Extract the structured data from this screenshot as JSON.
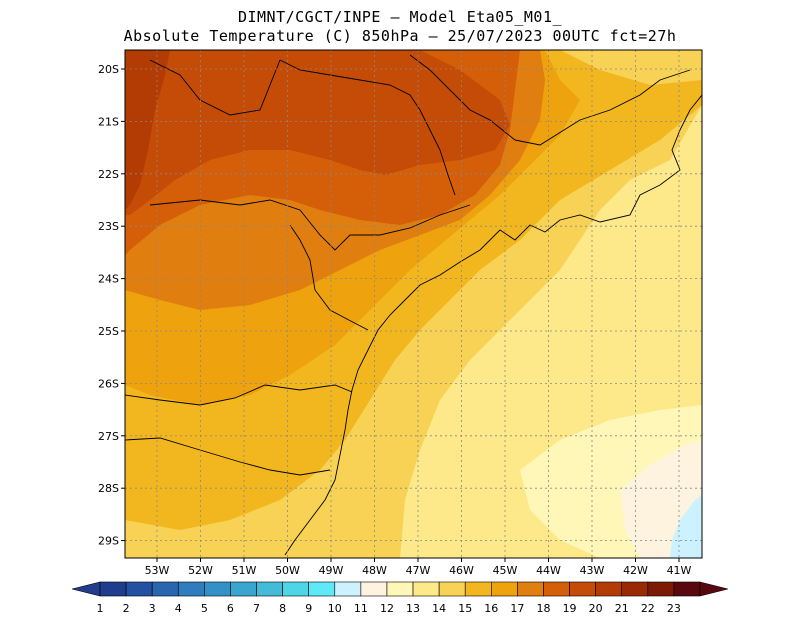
{
  "header": {
    "line1": "DIMNT/CGCT/INPE —  Model Eta05_M01_",
    "line2": "Absolute Temperature (C) 850hPa —  25/07/2023 00UTC fct=27h"
  },
  "map": {
    "lat_labels": [
      "20S",
      "21S",
      "22S",
      "23S",
      "24S",
      "25S",
      "26S",
      "27S",
      "28S",
      "29S"
    ],
    "lon_labels": [
      "53W",
      "52W",
      "51W",
      "50W",
      "49W",
      "48W",
      "47W",
      "46W",
      "45W",
      "44W",
      "43W",
      "42W",
      "41W"
    ],
    "field_colors": {
      "t13": "#fff7b8",
      "t14": "#fde98a",
      "t15": "#f7d255",
      "t16": "#f2b71f",
      "t17": "#eda20e",
      "t18": "#e07f10",
      "t19": "#d45f08",
      "t20": "#c44c06",
      "t21": "#b33c04",
      "t11": "#fdf3de",
      "t10": "#cdf2ff",
      "t9": "#5fe8f6"
    }
  },
  "colorbar": {
    "labels": [
      "1",
      "2",
      "3",
      "4",
      "5",
      "6",
      "7",
      "8",
      "9",
      "10",
      "11",
      "12",
      "13",
      "14",
      "15",
      "16",
      "17",
      "18",
      "19",
      "20",
      "21",
      "22",
      "23"
    ],
    "colors": [
      "#1f3d8c",
      "#2350a0",
      "#2a66b0",
      "#2f7dbe",
      "#3491c8",
      "#3aa6d0",
      "#44bcd8",
      "#4ed6e6",
      "#5fe8f6",
      "#cdf2ff",
      "#fdf3de",
      "#fff7b8",
      "#fde98a",
      "#f7d255",
      "#f2b71f",
      "#eda20e",
      "#e07f10",
      "#d45f08",
      "#c44c06",
      "#b33c04",
      "#9a2a04",
      "#7d1a06",
      "#5a0810"
    ]
  }
}
